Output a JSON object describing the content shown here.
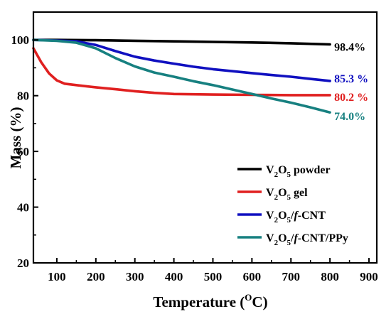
{
  "chart_data": {
    "type": "line",
    "title": "",
    "xlabel": {
      "base": "Temperature (",
      "sup": "O",
      "tail": "C)"
    },
    "ylabel": "Mass (%)",
    "xlim": [
      40,
      920
    ],
    "ylim": [
      20,
      110
    ],
    "x_ticks": [
      100,
      200,
      300,
      400,
      500,
      600,
      700,
      800,
      900
    ],
    "y_ticks": [
      20,
      40,
      60,
      80,
      100
    ],
    "grid": false,
    "legend_position": "bottom-right",
    "series": [
      {
        "key": "powder",
        "color": "#000000",
        "legend": [
          {
            "t": "V"
          },
          {
            "t": "2",
            "sub": true
          },
          {
            "t": "O"
          },
          {
            "t": "5",
            "sub": true
          },
          {
            "t": " powder"
          }
        ],
        "end_label": "98.4%",
        "points": [
          [
            40,
            100
          ],
          [
            100,
            100
          ],
          [
            200,
            99.9
          ],
          [
            300,
            99.7
          ],
          [
            400,
            99.5
          ],
          [
            500,
            99.3
          ],
          [
            600,
            99.1
          ],
          [
            700,
            98.8
          ],
          [
            800,
            98.4
          ]
        ]
      },
      {
        "key": "gel",
        "color": "#e02020",
        "legend": [
          {
            "t": "V"
          },
          {
            "t": "2",
            "sub": true
          },
          {
            "t": "O"
          },
          {
            "t": "5",
            "sub": true
          },
          {
            "t": " gel"
          }
        ],
        "end_label": "80.2 %",
        "points": [
          [
            40,
            97
          ],
          [
            60,
            92
          ],
          [
            80,
            88
          ],
          [
            100,
            85.5
          ],
          [
            120,
            84.3
          ],
          [
            150,
            83.8
          ],
          [
            200,
            83
          ],
          [
            250,
            82.3
          ],
          [
            300,
            81.6
          ],
          [
            350,
            81
          ],
          [
            400,
            80.6
          ],
          [
            500,
            80.4
          ],
          [
            600,
            80.3
          ],
          [
            700,
            80.2
          ],
          [
            800,
            80.2
          ]
        ]
      },
      {
        "key": "cnt",
        "color": "#1010c0",
        "legend": [
          {
            "t": "V"
          },
          {
            "t": "2",
            "sub": true
          },
          {
            "t": "O"
          },
          {
            "t": "5",
            "sub": true
          },
          {
            "t": "/"
          },
          {
            "t": "f",
            "italic": true
          },
          {
            "t": "-CNT"
          }
        ],
        "end_label": "85.3 %",
        "points": [
          [
            40,
            100
          ],
          [
            100,
            99.8
          ],
          [
            150,
            99.5
          ],
          [
            200,
            98.2
          ],
          [
            250,
            96
          ],
          [
            300,
            94
          ],
          [
            350,
            92.6
          ],
          [
            400,
            91.5
          ],
          [
            450,
            90.4
          ],
          [
            500,
            89.5
          ],
          [
            550,
            88.8
          ],
          [
            600,
            88.1
          ],
          [
            650,
            87.4
          ],
          [
            700,
            86.8
          ],
          [
            750,
            86
          ],
          [
            800,
            85.3
          ]
        ]
      },
      {
        "key": "ppy",
        "color": "#178080",
        "legend": [
          {
            "t": "V"
          },
          {
            "t": "2",
            "sub": true
          },
          {
            "t": "O"
          },
          {
            "t": "5",
            "sub": true
          },
          {
            "t": "/"
          },
          {
            "t": "f",
            "italic": true
          },
          {
            "t": "-CNT/PPy"
          }
        ],
        "end_label": "74.0%",
        "points": [
          [
            40,
            100
          ],
          [
            100,
            99.7
          ],
          [
            150,
            99
          ],
          [
            200,
            97
          ],
          [
            250,
            93.5
          ],
          [
            300,
            90.5
          ],
          [
            350,
            88.3
          ],
          [
            400,
            86.8
          ],
          [
            450,
            85.2
          ],
          [
            500,
            83.8
          ],
          [
            550,
            82.2
          ],
          [
            600,
            80.6
          ],
          [
            650,
            79
          ],
          [
            700,
            77.5
          ],
          [
            750,
            75.8
          ],
          [
            800,
            74
          ]
        ]
      }
    ]
  }
}
